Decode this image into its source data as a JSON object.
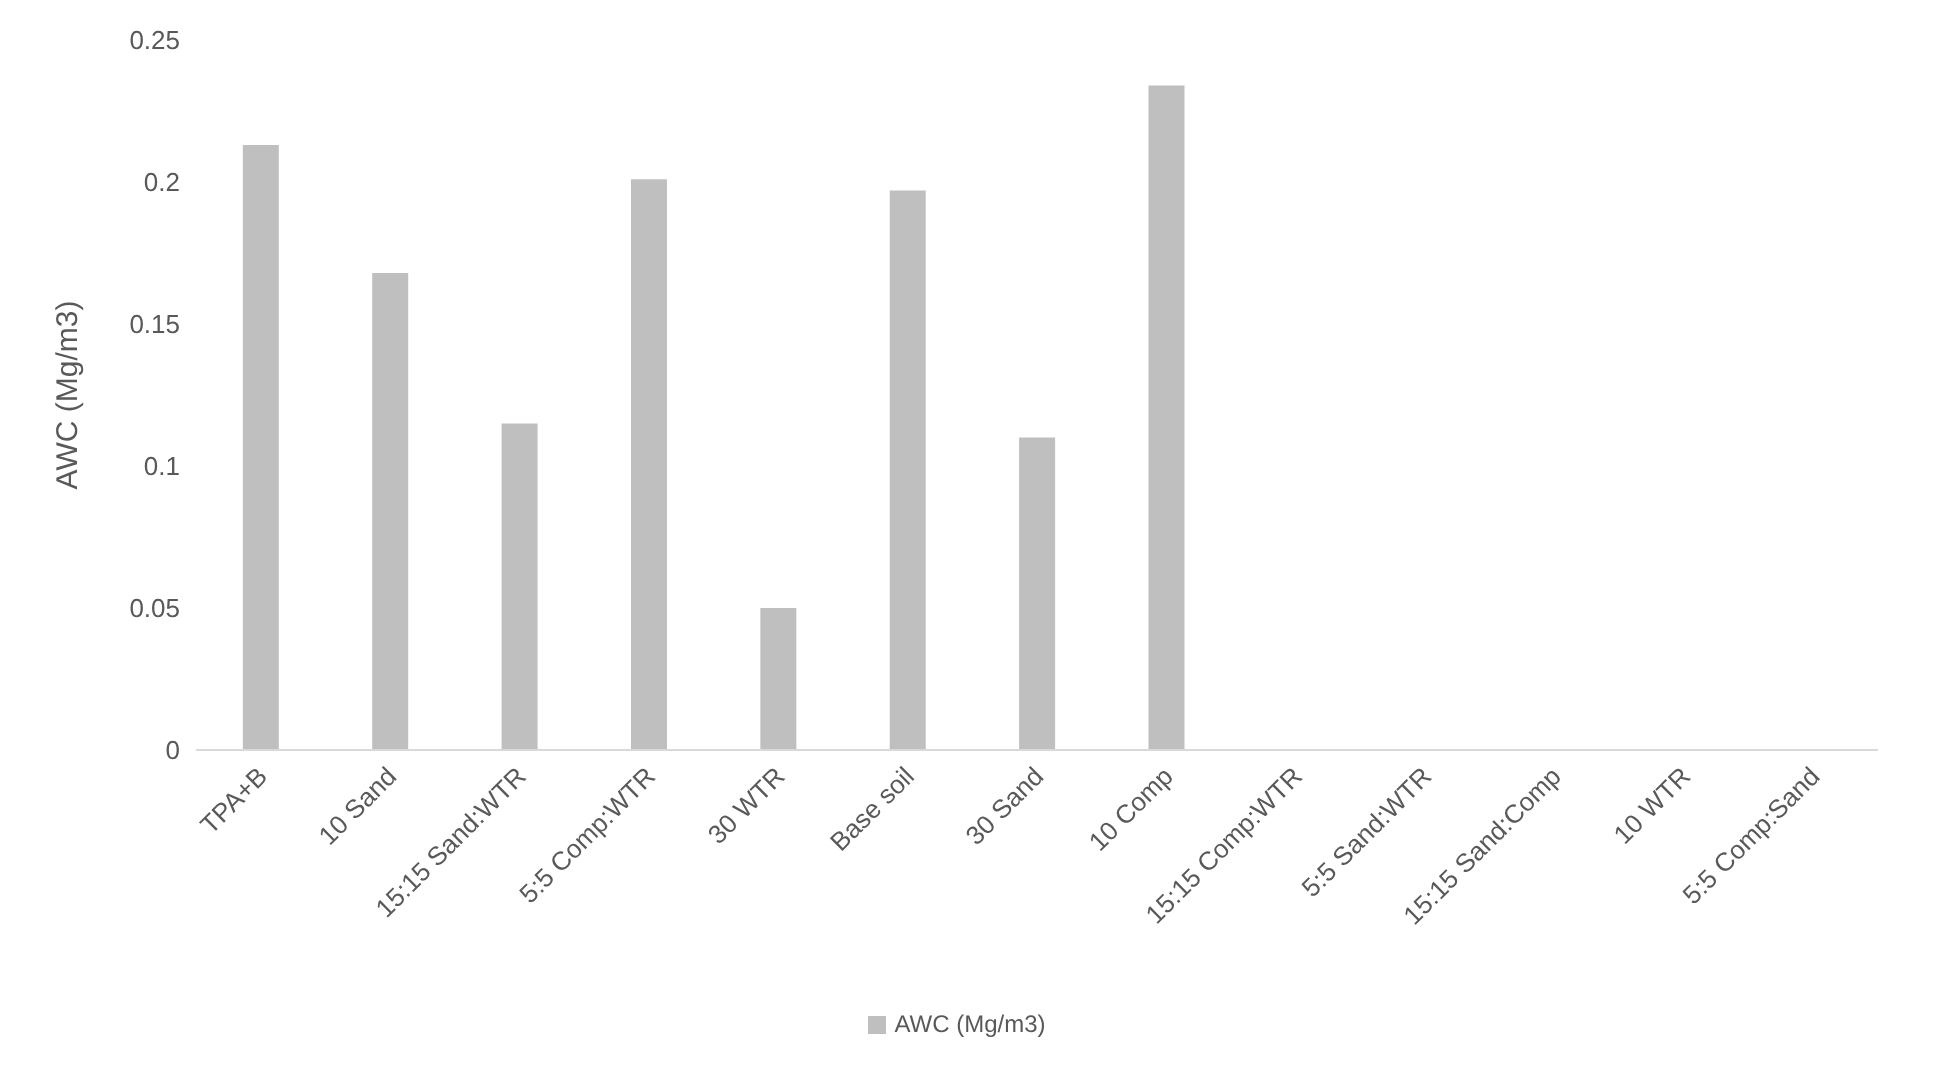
{
  "chart_data": {
    "type": "bar",
    "ylabel": "AWC (Mg/m3)",
    "categories": [
      "TPA+B",
      "10 Sand",
      "15:15 Sand:WTR",
      "5:5 Comp:WTR",
      "30 WTR",
      "Base soil",
      "30 Sand",
      "10 Comp",
      "15:15 Comp:WTR",
      "5:5 Sand:WTR",
      "15:15 Sand:Comp",
      "10 WTR",
      "5:5 Comp:Sand"
    ],
    "series": [
      {
        "name": "AWC (Mg/m3)",
        "color": "#bfbfbf",
        "values": [
          0.213,
          0.168,
          0.115,
          0.201,
          0.05,
          0.197,
          0.11,
          0.234,
          null,
          null,
          null,
          null,
          null
        ]
      }
    ],
    "ylim": [
      0,
      0.25
    ],
    "yticks": [
      0,
      0.05,
      0.1,
      0.15,
      0.2,
      0.25
    ],
    "grid": false,
    "legend": "bottom"
  }
}
